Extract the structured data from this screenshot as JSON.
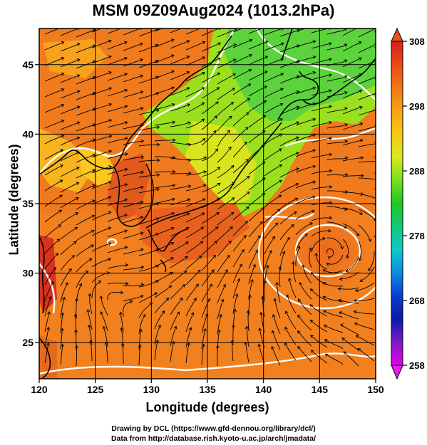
{
  "title": "MSM 09Z09Aug2024 (1013.2hPa)",
  "axes": {
    "xlabel": "Longitude (degrees)",
    "ylabel": "Latitude  (degrees)",
    "x_ticks": [
      120,
      125,
      130,
      135,
      140,
      145,
      150
    ],
    "y_ticks": [
      25,
      30,
      35,
      40,
      45
    ],
    "xlim": [
      120,
      150
    ],
    "ylim": [
      22.4,
      47.6
    ]
  },
  "colorbar": {
    "ticks": [
      258,
      268,
      278,
      288,
      298,
      308
    ],
    "range": [
      258,
      308
    ],
    "colors": [
      "#e800e8",
      "#7a1ac8",
      "#0a1aa8",
      "#0a3cd0",
      "#0a8ce0",
      "#10c8c8",
      "#14c878",
      "#1ec81e",
      "#78e01e",
      "#d8e81e",
      "#f8c814",
      "#f8a014",
      "#f07814",
      "#e84a14",
      "#d81e1e"
    ]
  },
  "credits": {
    "line1": "Drawing by DCL (https://www.gfd-dennou.org/library/dcl/)",
    "line2": "Data from http://database.rish.kyoto-u.ac.jp/arch/jmadata/"
  },
  "map": {
    "features": [
      "temperature-field",
      "streamlines",
      "coastlines",
      "typhoon-vortex",
      "pressure-contours"
    ],
    "colors": {
      "warm": "#f07a1e",
      "hot": "#d8501e",
      "mild": "#f8b41e",
      "cool": "#9ee01e",
      "cold": "#3cd23c",
      "contour": "#ffffff",
      "stream": "#000000"
    }
  }
}
